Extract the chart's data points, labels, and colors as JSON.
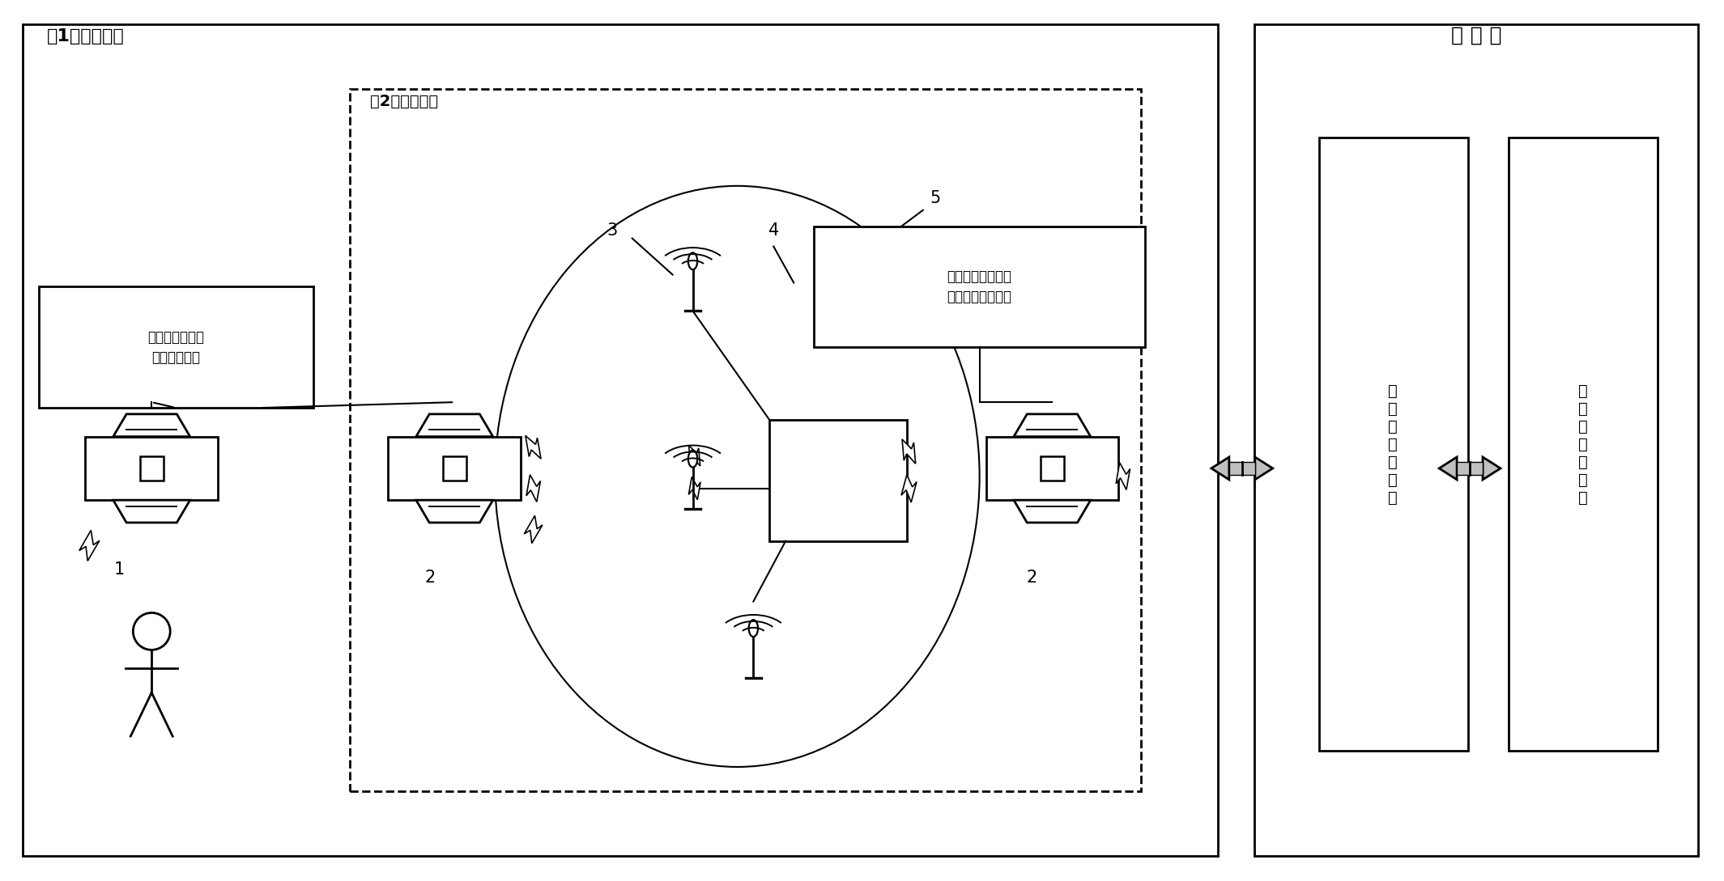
{
  "outer_box_label": "第1套计费机构",
  "inner_box_label": "第2套计费机构",
  "server_label": "服 务 器",
  "parking_server_label": "车\n位\n检\n测\n服\n务\n器",
  "fee_server_label": "停\n车\n收\n费\n服\n务\n器",
  "label1_text": "计费开始＿被动\n式标签被触发",
  "label2_text": "计费截止＿主动式\n标签离开接收区域",
  "num1": "1",
  "num2_left": "2",
  "num2_right": "2",
  "num3": "3",
  "num4": "4",
  "num5": "5",
  "bg_color": "#ffffff",
  "line_color": "#000000"
}
